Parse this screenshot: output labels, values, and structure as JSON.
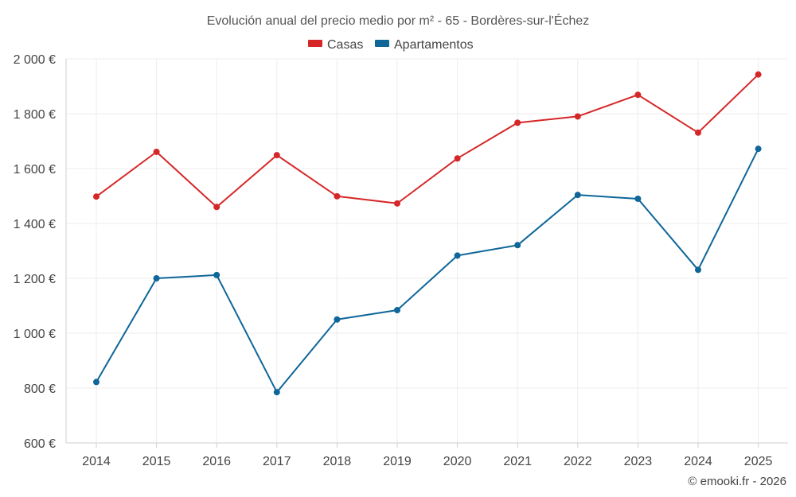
{
  "chart_data": {
    "type": "line",
    "title": "Evolución anual del precio medio por m² - 65 - Bordères-sur-l'Échez",
    "xlabel": "",
    "ylabel": "",
    "categories": [
      "2014",
      "2015",
      "2016",
      "2017",
      "2018",
      "2019",
      "2020",
      "2021",
      "2022",
      "2023",
      "2024",
      "2025"
    ],
    "series": [
      {
        "name": "Casas",
        "color": "#d62728",
        "values": [
          1498,
          1661,
          1460,
          1649,
          1499,
          1473,
          1637,
          1767,
          1790,
          1869,
          1731,
          1943
        ]
      },
      {
        "name": "Apartamentos",
        "color": "#0e6699",
        "values": [
          822,
          1200,
          1212,
          785,
          1050,
          1084,
          1283,
          1321,
          1504,
          1490,
          1231,
          1672
        ]
      }
    ],
    "ylim": [
      600,
      2000
    ],
    "yticks": [
      600,
      800,
      1000,
      1200,
      1400,
      1600,
      1800,
      2000
    ],
    "ytick_labels": [
      "600 €",
      "800 €",
      "1 000 €",
      "1 200 €",
      "1 400 €",
      "1 600 €",
      "1 800 €",
      "2 000 €"
    ],
    "grid": true,
    "legend": "top-center"
  },
  "credit": "© emooki.fr - 2026"
}
